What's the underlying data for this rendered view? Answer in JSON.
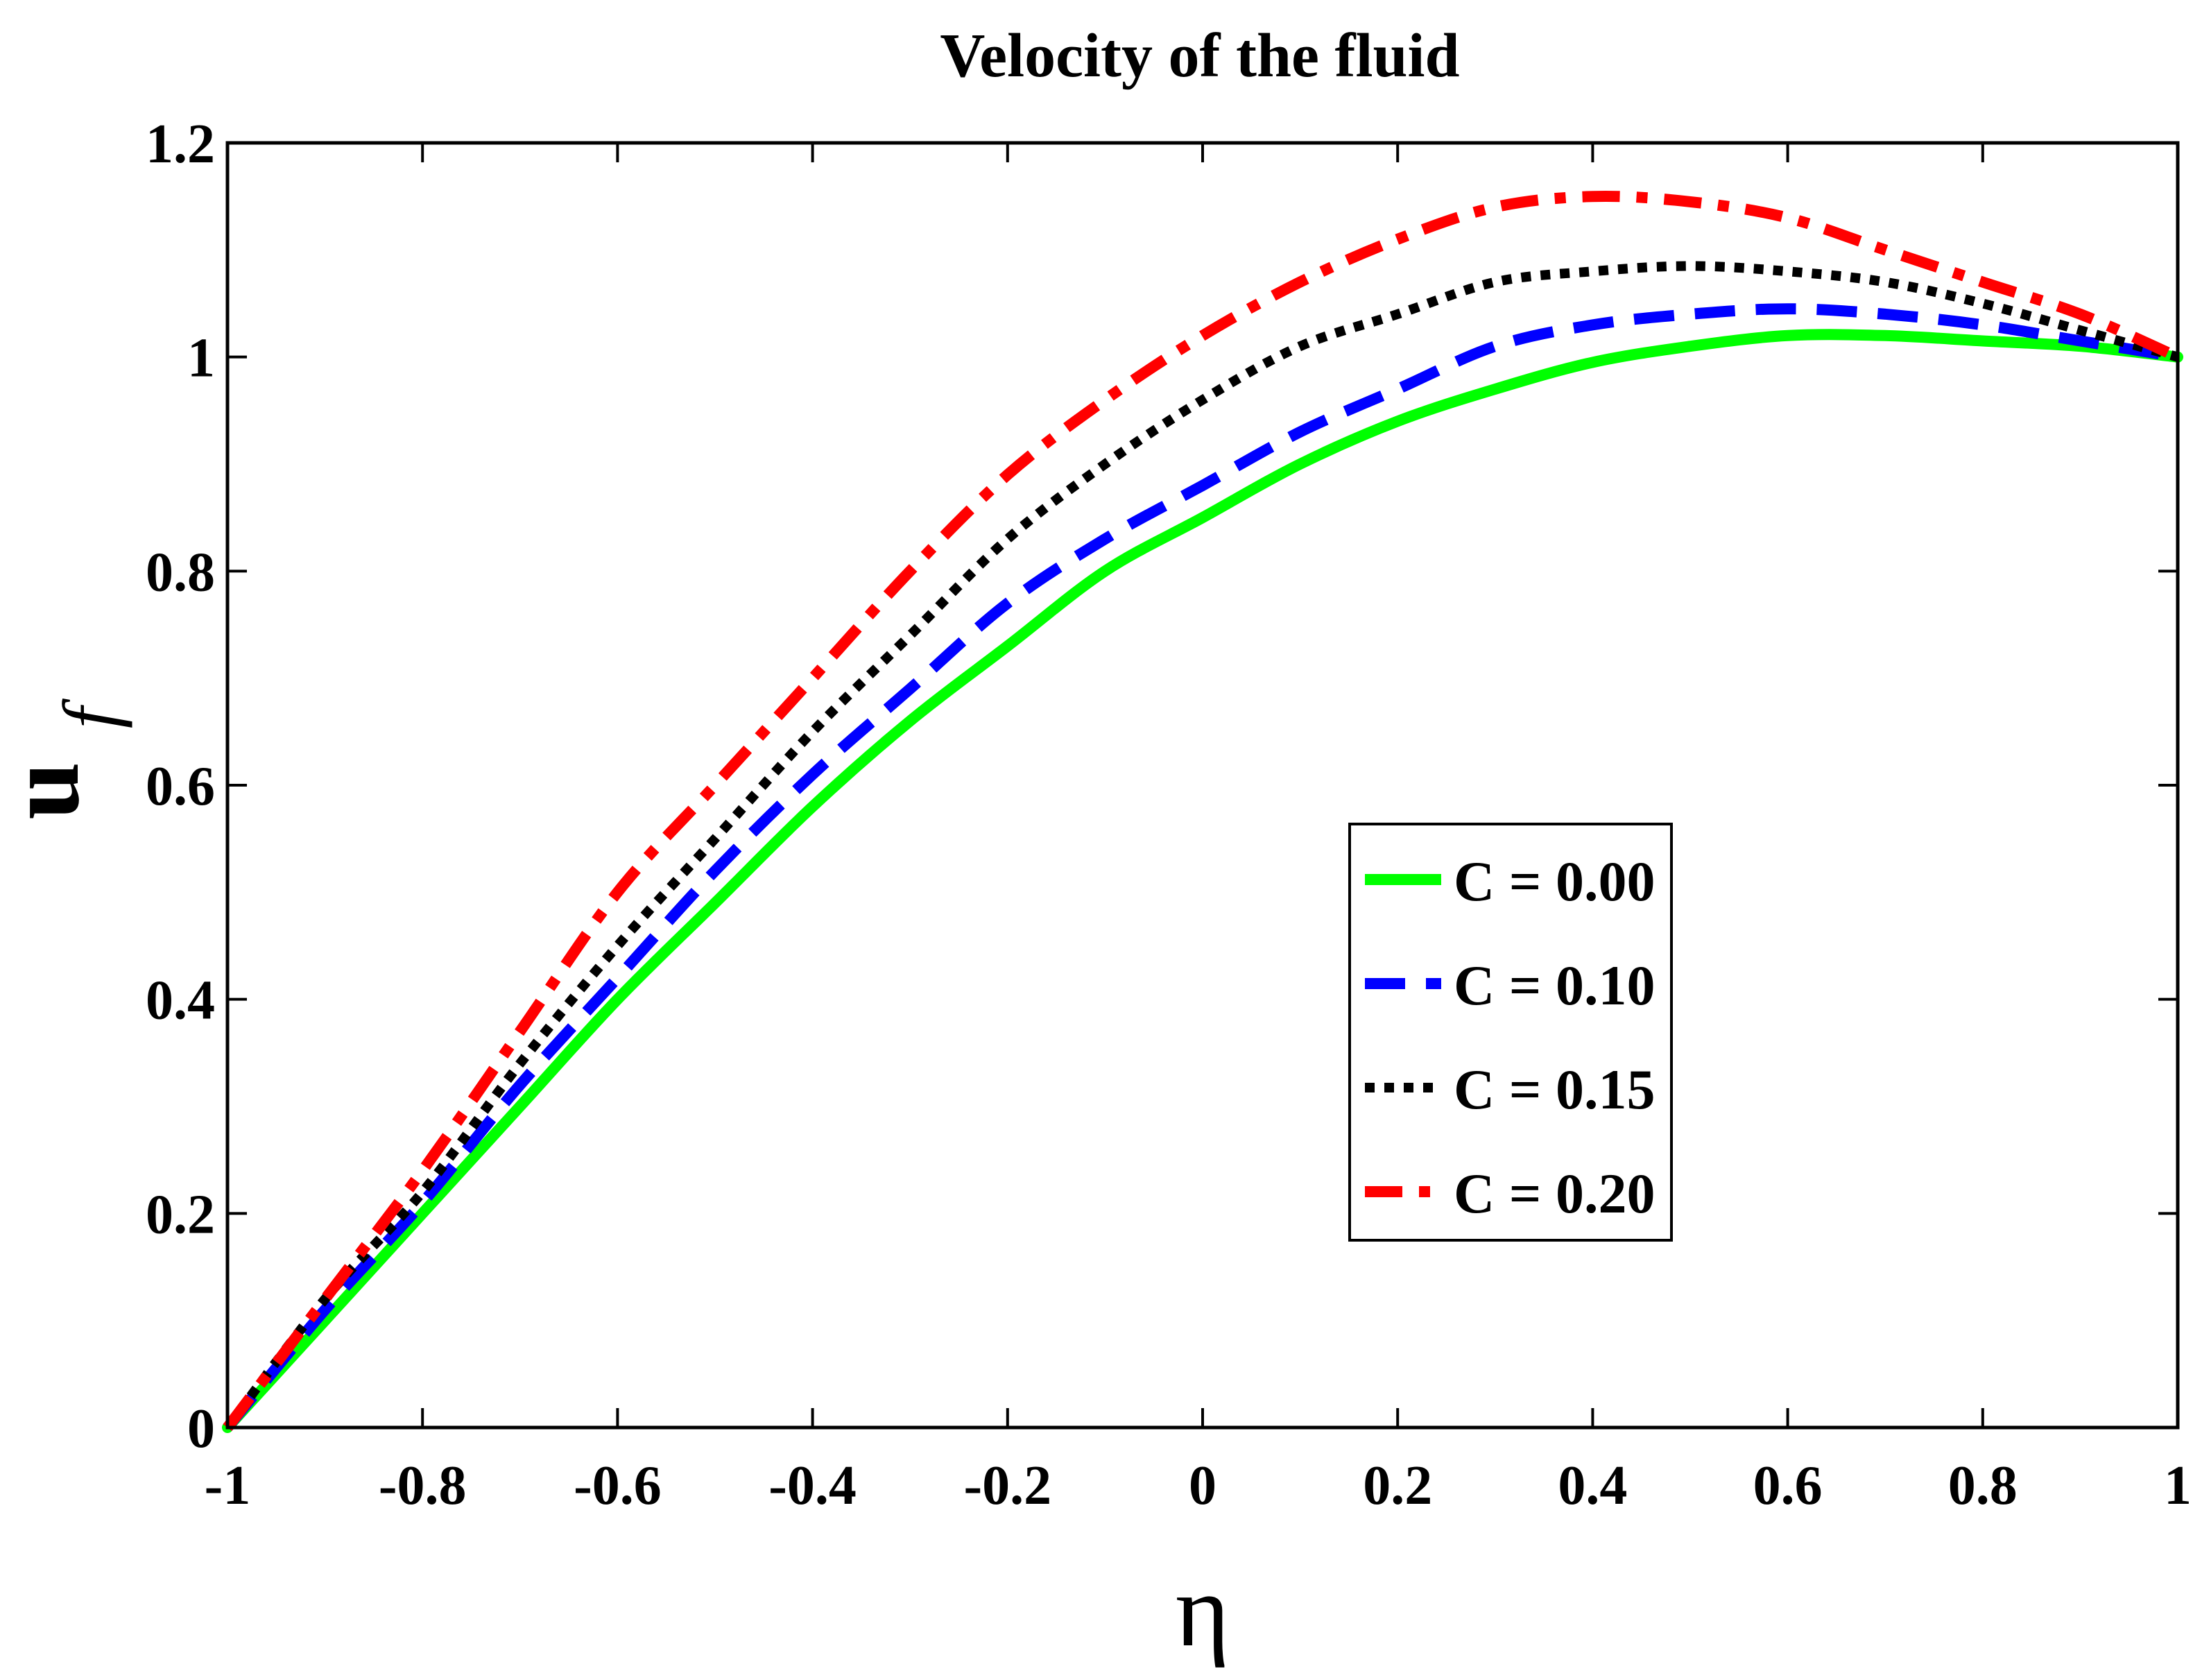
{
  "chart_data": {
    "type": "line",
    "title": "Velocity of the fluid",
    "xlabel": "η",
    "ylabel_main": "u",
    "ylabel_sub": "f",
    "xlim": [
      -1,
      1
    ],
    "ylim": [
      0,
      1.2
    ],
    "xticks": [
      -1,
      -0.8,
      -0.6,
      -0.4,
      -0.2,
      0,
      0.2,
      0.4,
      0.6,
      0.8,
      1
    ],
    "xtick_labels": [
      "-1",
      "-0.8",
      "-0.6",
      "-0.4",
      "-0.2",
      "0",
      "0.2",
      "0.4",
      "0.6",
      "0.8",
      "1"
    ],
    "yticks": [
      0,
      0.2,
      0.4,
      0.6,
      0.8,
      1,
      1.2
    ],
    "ytick_labels": [
      "0",
      "0.2",
      "0.4",
      "0.6",
      "0.8",
      "1",
      "1.2"
    ],
    "grid": false,
    "legend_position": "center-right",
    "x": [
      -1,
      -0.9,
      -0.8,
      -0.7,
      -0.6,
      -0.5,
      -0.4,
      -0.3,
      -0.2,
      -0.1,
      0,
      0.1,
      0.2,
      0.3,
      0.4,
      0.5,
      0.6,
      0.7,
      0.8,
      0.9,
      1
    ],
    "series": [
      {
        "name": "C = 0.00",
        "color": "#00ff00",
        "style": "solid",
        "values": [
          0,
          0.1,
          0.2,
          0.3,
          0.4,
          0.49,
          0.58,
          0.66,
          0.73,
          0.8,
          0.85,
          0.9,
          0.94,
          0.97,
          0.995,
          1.01,
          1.02,
          1.02,
          1.015,
          1.01,
          1.0
        ]
      },
      {
        "name": "C = 0.10",
        "color": "#0000ff",
        "style": "dashed",
        "values": [
          0,
          0.11,
          0.21,
          0.32,
          0.42,
          0.52,
          0.61,
          0.69,
          0.77,
          0.83,
          0.88,
          0.93,
          0.97,
          1.01,
          1.03,
          1.04,
          1.045,
          1.04,
          1.03,
          1.015,
          1.0
        ]
      },
      {
        "name": "C = 0.15",
        "color": "#000000",
        "style": "dotted",
        "values": [
          0,
          0.12,
          0.22,
          0.34,
          0.45,
          0.55,
          0.65,
          0.74,
          0.83,
          0.9,
          0.96,
          1.01,
          1.04,
          1.07,
          1.08,
          1.085,
          1.08,
          1.07,
          1.05,
          1.025,
          1.0
        ]
      },
      {
        "name": "C = 0.20",
        "color": "#ff0000",
        "style": "dashdot",
        "values": [
          0,
          0.12,
          0.24,
          0.37,
          0.5,
          0.6,
          0.7,
          0.8,
          0.89,
          0.96,
          1.02,
          1.07,
          1.11,
          1.14,
          1.15,
          1.145,
          1.13,
          1.1,
          1.07,
          1.04,
          1.0
        ]
      }
    ]
  }
}
